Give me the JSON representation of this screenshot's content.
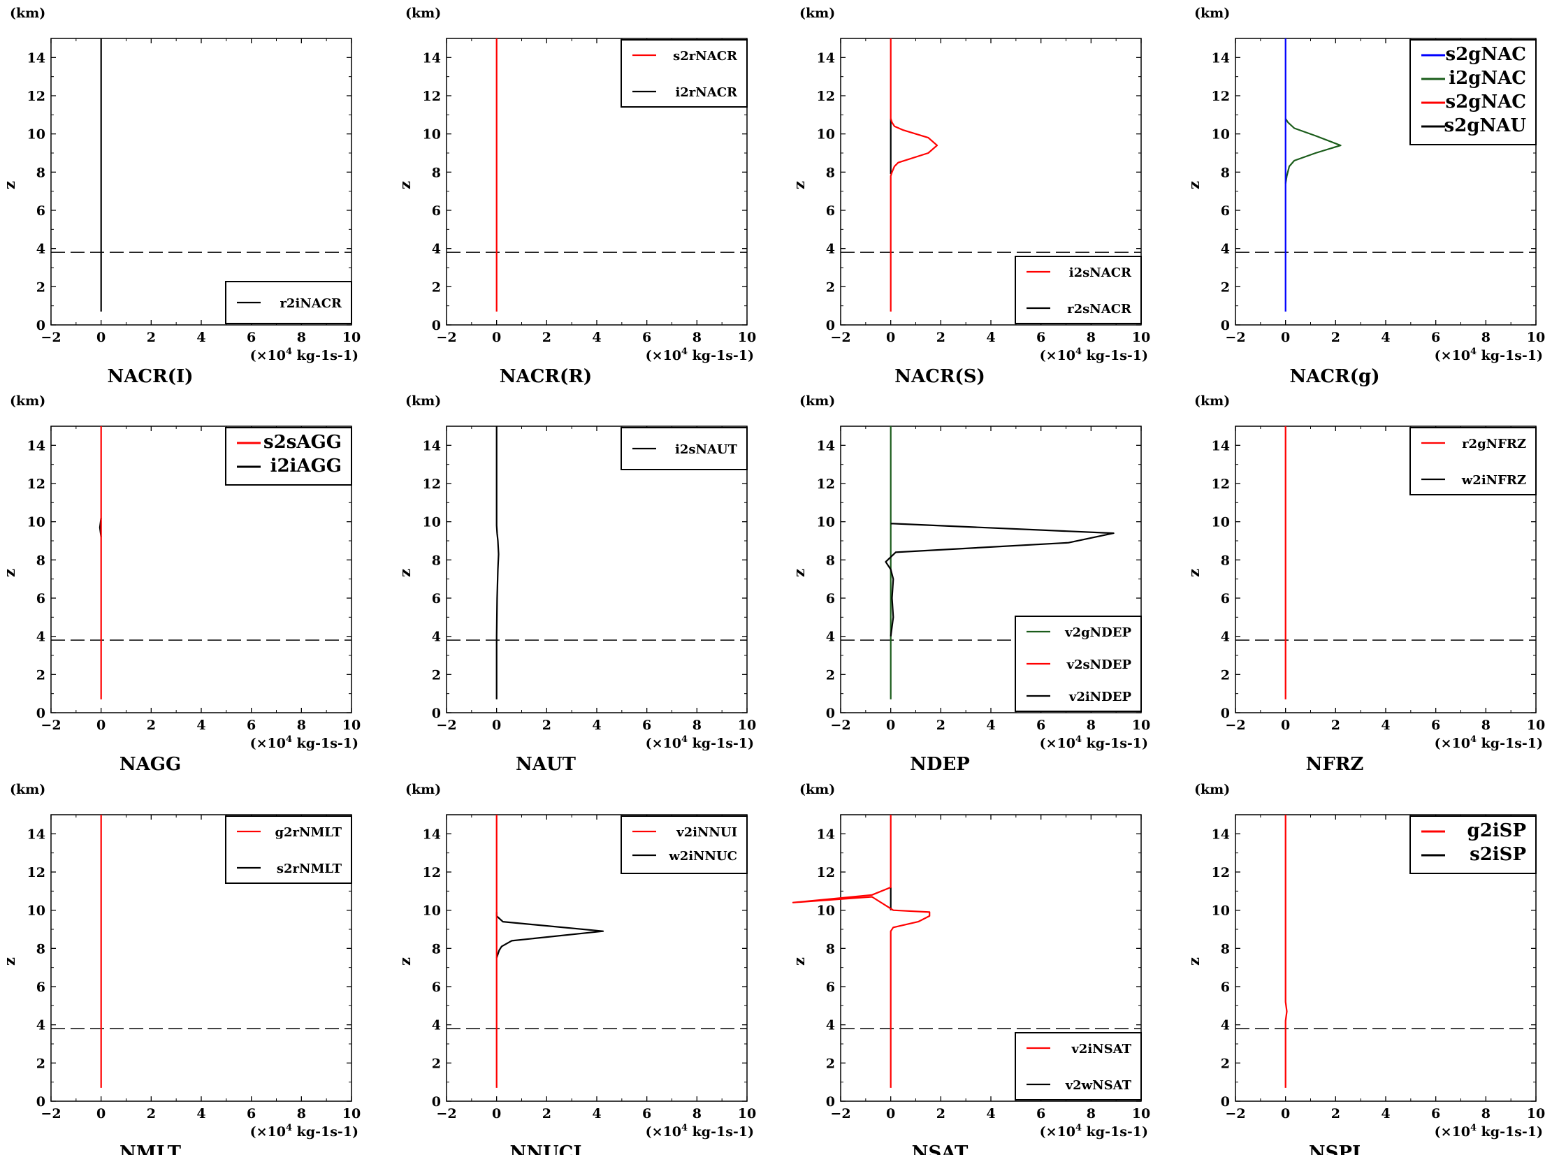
{
  "common": {
    "ylabel": "z",
    "yunit": "(km)",
    "xunit_prefix": "(×10",
    "xunit_exp": "4",
    "xunit_suffix": " kg-1s-1)",
    "xlim": [
      -2,
      10
    ],
    "ylim": [
      0,
      15
    ],
    "xticks": [
      -2,
      0,
      2,
      4,
      6,
      8,
      10
    ],
    "yticks": [
      0,
      2,
      4,
      6,
      8,
      10,
      12,
      14
    ],
    "dashed_line_z": 3.8
  },
  "chart_data": [
    {
      "type": "line",
      "title": "NACR(I)",
      "legend_position": "bottom-right",
      "series": [
        {
          "name": "r2iNACR",
          "color": "#000000",
          "x": [
            0,
            0
          ],
          "y": [
            0.7,
            15
          ]
        }
      ]
    },
    {
      "type": "line",
      "title": "NACR(R)",
      "legend_position": "top-right",
      "series": [
        {
          "name": "s2rNACR",
          "color": "#ff0000",
          "x": [
            0,
            0
          ],
          "y": [
            0.7,
            15
          ]
        },
        {
          "name": "i2rNACR",
          "color": "#000000",
          "x": [
            0,
            0
          ],
          "y": [
            0.7,
            0.7
          ]
        }
      ]
    },
    {
      "type": "line",
      "title": "NACR(S)",
      "legend_position": "bottom-right",
      "series": [
        {
          "name": "r2sNACR",
          "color": "#000000",
          "x": [
            0,
            0,
            0,
            0
          ],
          "y": [
            7.9,
            9.5,
            10.7,
            10.8
          ]
        },
        {
          "name": "i2sNACR",
          "color": "#ff0000",
          "x": [
            0,
            0,
            0.05,
            0.15,
            0.3,
            1.5,
            1.85,
            1.5,
            0.5,
            0.15,
            0.05,
            0,
            0
          ],
          "y": [
            0.7,
            7.8,
            8.0,
            8.3,
            8.5,
            9.0,
            9.4,
            9.8,
            10.2,
            10.4,
            10.6,
            10.8,
            15
          ]
        }
      ]
    },
    {
      "type": "line",
      "title": "NACR(g)",
      "legend_position": "top-right",
      "series": [
        {
          "name": "s2gNAU",
          "color": "#000000",
          "x": [
            0,
            0
          ],
          "y": [
            0.7,
            0.7
          ]
        },
        {
          "name": "s2gNAC",
          "color": "#ff0000",
          "x": [
            0,
            0
          ],
          "y": [
            0.7,
            0.7
          ]
        },
        {
          "name": "i2gNAC",
          "color": "#1a5c1a",
          "x": [
            0,
            0.05,
            0.15,
            0.35,
            1.2,
            2.2,
            1.2,
            0.35,
            0.1,
            0
          ],
          "y": [
            7.4,
            7.8,
            8.3,
            8.6,
            9.0,
            9.4,
            9.9,
            10.3,
            10.6,
            10.8
          ]
        },
        {
          "name": "s2gNAC",
          "color": "#0000ff",
          "x": [
            0,
            0
          ],
          "y": [
            0.7,
            15
          ]
        }
      ]
    },
    {
      "type": "line",
      "title": "NAGG",
      "legend_position": "top-right",
      "series": [
        {
          "name": "i2iAGG",
          "color": "#000000",
          "x": [
            0,
            -0.05,
            0
          ],
          "y": [
            9.2,
            9.7,
            10.2
          ]
        },
        {
          "name": "s2sAGG",
          "color": "#ff0000",
          "x": [
            0,
            0
          ],
          "y": [
            0.7,
            15
          ]
        }
      ]
    },
    {
      "type": "line",
      "title": "NAUT",
      "legend_position": "top-right",
      "series": [
        {
          "name": "i2sNAUT",
          "color": "#000000",
          "x": [
            0,
            0,
            0.02,
            0.05,
            0.08,
            0.05,
            0.02,
            0,
            0
          ],
          "y": [
            0.7,
            4.0,
            6.0,
            7.5,
            8.3,
            9.0,
            9.4,
            9.8,
            15
          ]
        }
      ]
    },
    {
      "type": "line",
      "title": "NDEP",
      "legend_position": "bottom-right",
      "series": [
        {
          "name": "v2gNDEP",
          "color": "#1a5c1a",
          "x": [
            0,
            0
          ],
          "y": [
            0.7,
            15
          ]
        },
        {
          "name": "v2sNDEP",
          "color": "#ff0000",
          "x": [
            0,
            0
          ],
          "y": [
            0.7,
            0.7
          ]
        },
        {
          "name": "v2iNDEP",
          "color": "#000000",
          "x": [
            0,
            0.05,
            0.1,
            0.05,
            0.1,
            0,
            -0.2,
            0.2,
            7.1,
            8.9,
            0.1,
            0
          ],
          "y": [
            4.0,
            4.5,
            5.0,
            6.0,
            7.0,
            7.5,
            7.9,
            8.4,
            8.9,
            9.4,
            9.9,
            9.9
          ]
        }
      ]
    },
    {
      "type": "line",
      "title": "NFRZ",
      "legend_position": "top-right",
      "series": [
        {
          "name": "r2gNFRZ",
          "color": "#ff0000",
          "x": [
            0,
            0
          ],
          "y": [
            0.7,
            15
          ]
        },
        {
          "name": "w2iNFRZ",
          "color": "#000000",
          "x": [
            0,
            0
          ],
          "y": [
            0.7,
            0.7
          ]
        }
      ]
    },
    {
      "type": "line",
      "title": "NMLT",
      "legend_position": "top-right",
      "series": [
        {
          "name": "g2rNMLT",
          "color": "#ff0000",
          "x": [
            0,
            0
          ],
          "y": [
            0.7,
            15
          ]
        },
        {
          "name": "s2rNMLT",
          "color": "#000000",
          "x": [
            0,
            0
          ],
          "y": [
            0.7,
            0.7
          ]
        }
      ]
    },
    {
      "type": "line",
      "title": "NNUCI",
      "legend_position": "top-right",
      "series": [
        {
          "name": "w2iNNUC",
          "color": "#000000",
          "x": [
            0,
            0.1,
            0.2,
            0.6,
            4.25,
            0.25,
            0,
            0
          ],
          "y": [
            7.5,
            7.9,
            8.1,
            8.4,
            8.9,
            9.4,
            9.7,
            9.9
          ]
        },
        {
          "name": "v2iNNUI",
          "color": "#ff0000",
          "x": [
            0,
            0
          ],
          "y": [
            0.7,
            15
          ]
        }
      ]
    },
    {
      "type": "line",
      "title": "NSAT",
      "legend_position": "bottom-right",
      "series": [
        {
          "name": "v2wNSAT",
          "color": "#000000",
          "x": [
            0,
            0
          ],
          "y": [
            10.0,
            11.2
          ]
        },
        {
          "name": "v2iNSAT",
          "color": "#ff0000",
          "x": [
            0,
            0,
            0.1,
            1.1,
            1.55,
            1.55,
            0.1,
            -0.75,
            -3.9,
            -0.75,
            0,
            0
          ],
          "y": [
            0.7,
            8.9,
            9.1,
            9.4,
            9.7,
            9.9,
            10.0,
            10.7,
            10.4,
            10.8,
            11.2,
            15
          ]
        }
      ]
    },
    {
      "type": "line",
      "title": "NSPI",
      "legend_position": "top-right",
      "legend_large": true,
      "series": [
        {
          "name": "g2iSP",
          "color": "#ff0000",
          "x": [
            0,
            0,
            0.05,
            0,
            0,
            0
          ],
          "y": [
            0.7,
            4.2,
            4.7,
            5.2,
            5.5,
            15
          ]
        },
        {
          "name": "s2iSP",
          "color": "#000000",
          "x": [
            0,
            0
          ],
          "y": [
            0.7,
            0.7
          ]
        }
      ]
    }
  ],
  "legends": [
    {
      "entries": [
        {
          "name": "r2iNACR",
          "color": "#000000"
        }
      ],
      "box": "bottom",
      "spacing": "single"
    },
    {
      "entries": [
        {
          "name": "s2rNACR",
          "color": "#ff0000"
        },
        {
          "name": "i2rNACR",
          "color": "#000000"
        }
      ],
      "box": "top",
      "spacing": "wide"
    },
    {
      "entries": [
        {
          "name": "i2sNACR",
          "color": "#ff0000"
        },
        {
          "name": "r2sNACR",
          "color": "#000000"
        }
      ],
      "box": "bottom",
      "spacing": "wide"
    },
    {
      "entries": [
        {
          "name": "s2gNAC",
          "color": "#0000ff"
        },
        {
          "name": "i2gNAC",
          "color": "#1a5c1a"
        },
        {
          "name": "s2gNAC",
          "color": "#ff0000"
        },
        {
          "name": "s2gNAU",
          "color": "#000000"
        }
      ],
      "box": "top",
      "spacing": "tight",
      "large": true
    },
    {
      "entries": [
        {
          "name": "s2sAGG",
          "color": "#ff0000"
        },
        {
          "name": "i2iAGG",
          "color": "#000000"
        }
      ],
      "box": "top",
      "spacing": "tight",
      "large": true
    },
    {
      "entries": [
        {
          "name": "i2sNAUT",
          "color": "#000000"
        }
      ],
      "box": "top",
      "spacing": "single"
    },
    {
      "entries": [
        {
          "name": "v2gNDEP",
          "color": "#1a5c1a"
        },
        {
          "name": "v2sNDEP",
          "color": "#ff0000"
        },
        {
          "name": "v2iNDEP",
          "color": "#000000"
        }
      ],
      "box": "bottom",
      "spacing": "medium"
    },
    {
      "entries": [
        {
          "name": "r2gNFRZ",
          "color": "#ff0000"
        },
        {
          "name": "w2iNFRZ",
          "color": "#000000"
        }
      ],
      "box": "top",
      "spacing": "wide"
    },
    {
      "entries": [
        {
          "name": "g2rNMLT",
          "color": "#ff0000"
        },
        {
          "name": "s2rNMLT",
          "color": "#000000"
        }
      ],
      "box": "top",
      "spacing": "wide"
    },
    {
      "entries": [
        {
          "name": "v2iNNUI",
          "color": "#ff0000"
        },
        {
          "name": "w2iNNUC",
          "color": "#000000"
        }
      ],
      "box": "top",
      "spacing": "tight"
    },
    {
      "entries": [
        {
          "name": "v2iNSAT",
          "color": "#ff0000"
        },
        {
          "name": "v2wNSAT",
          "color": "#000000"
        }
      ],
      "box": "bottom",
      "spacing": "wide"
    },
    {
      "entries": [
        {
          "name": "g2iSP",
          "color": "#ff0000"
        },
        {
          "name": "s2iSP",
          "color": "#000000"
        }
      ],
      "box": "top",
      "spacing": "tight",
      "large": true
    }
  ]
}
